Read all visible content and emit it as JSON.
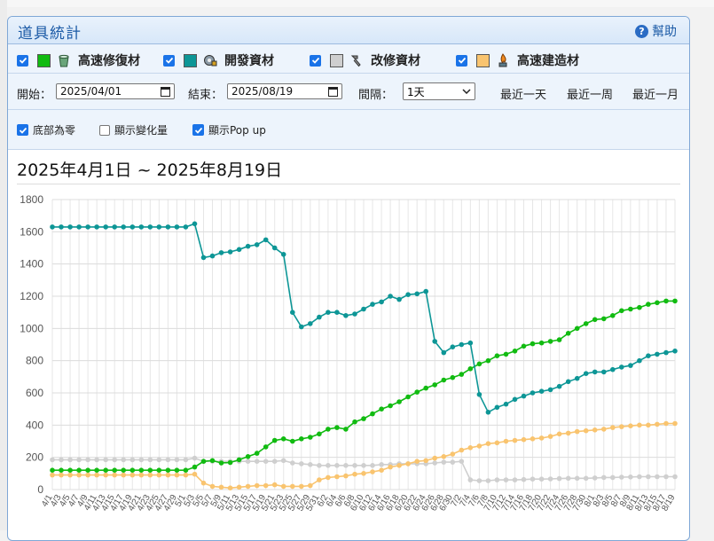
{
  "panel": {
    "title": "道具統計",
    "help_label": "幫助"
  },
  "legend": [
    {
      "label": "高速修復材",
      "color": "#11bb11",
      "checked": true,
      "icon": "bucket-icon"
    },
    {
      "label": "開發資材",
      "color": "#0d9696",
      "checked": true,
      "icon": "dev-material-icon"
    },
    {
      "label": "改修資材",
      "color": "#cfcfcf",
      "checked": true,
      "icon": "screw-icon"
    },
    {
      "label": "高速建造材",
      "color": "#f9c46f",
      "checked": true,
      "icon": "burner-icon"
    }
  ],
  "controls": {
    "start_label": "開始：",
    "start_value": "2025/04/01",
    "end_label": "結束：",
    "end_value": "2025/08/19",
    "interval_label": "間隔：",
    "interval_value": "1天",
    "quick": [
      "最近一天",
      "最近一周",
      "最近一月"
    ]
  },
  "options": [
    {
      "label": "底部為零",
      "checked": true
    },
    {
      "label": "顯示變化量",
      "checked": false
    },
    {
      "label": "顯示Pop up",
      "checked": true
    }
  ],
  "chart_data": {
    "type": "line",
    "title": "2025年4月1日 ~ 2025年8月19日",
    "ylim": [
      0,
      1800
    ],
    "yticks": [
      0,
      200,
      400,
      600,
      800,
      1000,
      1200,
      1400,
      1600,
      1800
    ],
    "x": [
      "4/1",
      "4/3",
      "4/5",
      "4/7",
      "4/9",
      "4/11",
      "4/13",
      "4/15",
      "4/17",
      "4/19",
      "4/21",
      "4/23",
      "4/25",
      "4/27",
      "4/29",
      "5/1",
      "5/3",
      "5/5",
      "5/7",
      "5/9",
      "5/11",
      "5/13",
      "5/15",
      "5/17",
      "5/19",
      "5/21",
      "5/23",
      "5/25",
      "5/27",
      "5/29",
      "5/31",
      "6/2",
      "6/4",
      "6/6",
      "6/8",
      "6/10",
      "6/12",
      "6/14",
      "6/16",
      "6/18",
      "6/20",
      "6/22",
      "6/24",
      "6/26",
      "6/28",
      "6/30",
      "7/2",
      "7/4",
      "7/6",
      "7/8",
      "7/10",
      "7/12",
      "7/14",
      "7/16",
      "7/18",
      "7/20",
      "7/22",
      "7/24",
      "7/26",
      "7/28",
      "7/30",
      "8/1",
      "8/3",
      "8/5",
      "8/7",
      "8/9",
      "8/11",
      "8/13",
      "8/15",
      "8/17",
      "8/19"
    ],
    "grid": true,
    "series": [
      {
        "name": "高速修復材",
        "color": "#11bb11",
        "values": [
          120,
          120,
          120,
          120,
          120,
          120,
          120,
          120,
          120,
          120,
          120,
          120,
          120,
          120,
          120,
          120,
          140,
          175,
          180,
          165,
          168,
          185,
          205,
          225,
          265,
          305,
          315,
          300,
          315,
          325,
          345,
          375,
          385,
          375,
          420,
          440,
          470,
          500,
          520,
          545,
          575,
          605,
          630,
          650,
          680,
          695,
          715,
          750,
          780,
          800,
          830,
          840,
          860,
          890,
          905,
          910,
          920,
          930,
          970,
          1000,
          1030,
          1055,
          1060,
          1080,
          1110,
          1120,
          1130,
          1150,
          1160,
          1170,
          1170
        ]
      },
      {
        "name": "開發資材",
        "color": "#0d9696",
        "values": [
          1630,
          1630,
          1630,
          1630,
          1630,
          1630,
          1630,
          1630,
          1630,
          1630,
          1630,
          1630,
          1630,
          1630,
          1630,
          1630,
          1650,
          1440,
          1450,
          1470,
          1475,
          1490,
          1510,
          1520,
          1550,
          1500,
          1460,
          1100,
          1010,
          1030,
          1070,
          1100,
          1100,
          1080,
          1090,
          1120,
          1150,
          1165,
          1200,
          1180,
          1210,
          1215,
          1230,
          920,
          850,
          885,
          900,
          910,
          590,
          480,
          510,
          530,
          560,
          580,
          600,
          610,
          620,
          640,
          670,
          690,
          720,
          730,
          730,
          745,
          760,
          770,
          800,
          830,
          840,
          850,
          860
        ]
      },
      {
        "name": "改修資材",
        "color": "#cfcfcf",
        "values": [
          185,
          185,
          185,
          185,
          185,
          185,
          185,
          185,
          185,
          185,
          185,
          185,
          185,
          185,
          185,
          185,
          195,
          175,
          175,
          175,
          175,
          175,
          175,
          175,
          175,
          175,
          180,
          165,
          160,
          155,
          150,
          150,
          150,
          150,
          150,
          150,
          150,
          155,
          155,
          160,
          160,
          160,
          160,
          165,
          170,
          170,
          175,
          60,
          55,
          55,
          60,
          60,
          60,
          62,
          65,
          65,
          66,
          68,
          70,
          70,
          70,
          72,
          75,
          75,
          77,
          78,
          80,
          80,
          80,
          80,
          80
        ]
      },
      {
        "name": "高速建造材",
        "color": "#f9c46f",
        "values": [
          90,
          90,
          90,
          90,
          90,
          90,
          90,
          90,
          90,
          90,
          90,
          90,
          90,
          90,
          90,
          90,
          95,
          40,
          20,
          15,
          10,
          15,
          20,
          25,
          25,
          30,
          20,
          20,
          20,
          25,
          60,
          75,
          80,
          85,
          95,
          100,
          110,
          120,
          140,
          150,
          160,
          175,
          180,
          195,
          205,
          220,
          245,
          260,
          270,
          285,
          290,
          300,
          305,
          310,
          315,
          320,
          330,
          345,
          350,
          360,
          365,
          370,
          375,
          385,
          390,
          395,
          400,
          400,
          405,
          410,
          410
        ]
      }
    ]
  }
}
